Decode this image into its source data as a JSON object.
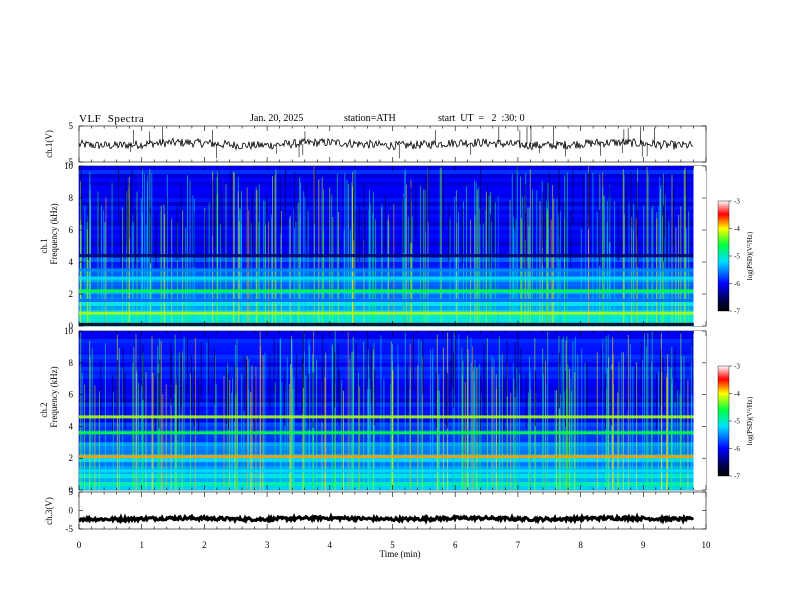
{
  "header": {
    "title": "VLF  Spectra",
    "date": "Jan. 20, 2025",
    "station": "station=ATH",
    "start_ut": "start  UT  =   2  :30: 0"
  },
  "chart_data": [
    {
      "type": "line",
      "panel": "ch1-waveform",
      "ylabel": "ch.1(V)",
      "yticks": [
        "5",
        "-5"
      ],
      "ylim": [
        -5,
        5
      ],
      "xlim": [
        0,
        10
      ],
      "data_end_min": 9.8,
      "series": [
        {
          "baseline": 0,
          "noise": 0.4,
          "spikes": 28
        }
      ],
      "color": "#000000"
    },
    {
      "type": "heatmap",
      "panel": "ch1-spectrogram",
      "ylabel": [
        "ch.1",
        "Frequency  (kHz)"
      ],
      "yticks": [
        "10",
        "8",
        "6",
        "4",
        "2",
        "0"
      ],
      "ylim": [
        0,
        10
      ],
      "xlim": [
        0,
        10
      ],
      "data_end_min": 9.8,
      "colorbar": {
        "label": "log(PSD)(V²/Hz)",
        "ticks": [
          "-3",
          "-4",
          "-5",
          "-6",
          "-7"
        ],
        "range": [
          -7,
          -3
        ]
      },
      "bands_khz": [
        {
          "f": 4.4,
          "level": -6.5
        },
        {
          "f": 3.5,
          "level": -5.5
        },
        {
          "f": 3.0,
          "level": -5.2
        },
        {
          "f": 2.2,
          "level": -4.6
        },
        {
          "f": 1.6,
          "level": -5.6
        },
        {
          "f": 0.8,
          "level": -4.2
        },
        {
          "f": 0.1,
          "level": -6.9
        }
      ]
    },
    {
      "type": "heatmap",
      "panel": "ch2-spectrogram",
      "ylabel": [
        "ch.2",
        "Frequency  (kHz)"
      ],
      "yticks": [
        "10",
        "8",
        "6",
        "4",
        "2",
        "0"
      ],
      "ylim": [
        0,
        10
      ],
      "xlim": [
        0,
        10
      ],
      "data_end_min": 9.8,
      "colorbar": {
        "label": "log(PSD)(V²/Hz)",
        "ticks": [
          "-3",
          "-4",
          "-5",
          "-6",
          "-7"
        ],
        "range": [
          -7,
          -3
        ]
      },
      "bands_khz": [
        {
          "f": 4.6,
          "level": -4.2
        },
        {
          "f": 3.6,
          "level": -4.6
        },
        {
          "f": 2.1,
          "level": -3.8
        },
        {
          "f": 1.2,
          "level": -5.2
        }
      ]
    },
    {
      "type": "line",
      "panel": "ch3-waveform",
      "ylabel": "ch.3(V)",
      "yticks": [
        "5",
        "0",
        "-5"
      ],
      "ylim": [
        -5,
        5
      ],
      "xlim": [
        0,
        10
      ],
      "data_end_min": 9.8,
      "series": [
        {
          "baseline": -2.2,
          "noise": 0.15,
          "spikes": 0
        }
      ],
      "xlabel": "Time  (min)",
      "xticks": [
        "0",
        "1",
        "2",
        "3",
        "4",
        "5",
        "6",
        "7",
        "8",
        "9",
        "10"
      ],
      "color": "#000000"
    }
  ]
}
